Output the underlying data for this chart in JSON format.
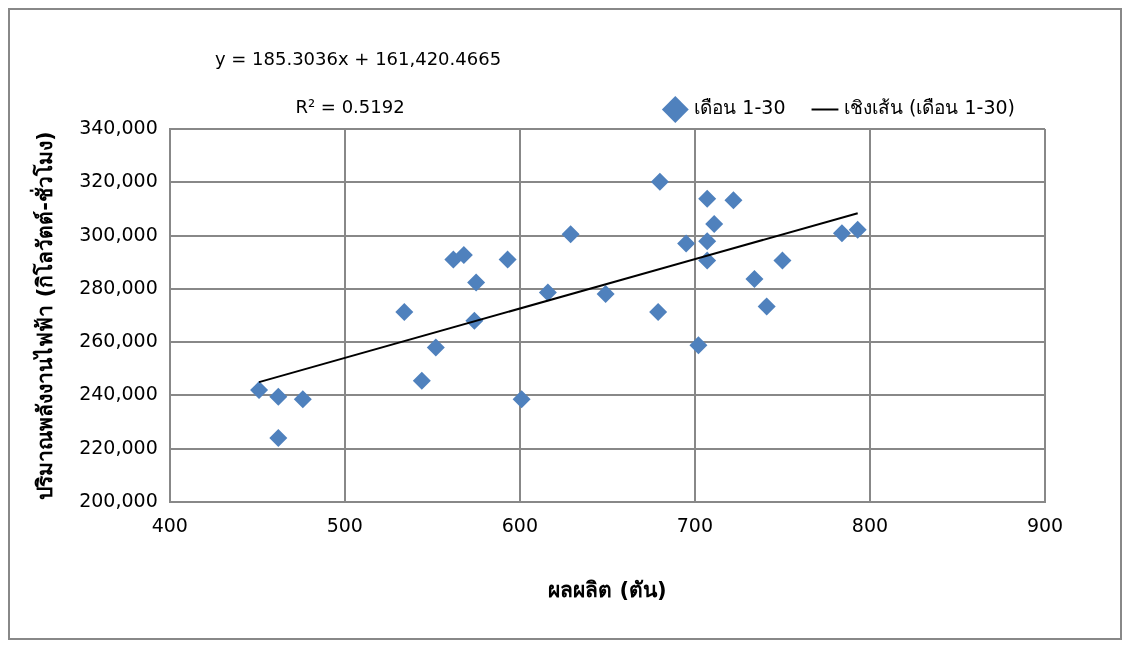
{
  "chart_data": {
    "type": "scatter",
    "xlabel": "ผลผลิต (ตัน)",
    "ylabel": "ปริมาณพลังงานไฟฟ้า (กิโลวัตต์-ชั่วโมง)",
    "annotations": [
      "y = 185.3036x + 161,420.4665",
      "R² = 0.5192"
    ],
    "series": [
      {
        "name": "เดือน 1-30",
        "color": "#4f81bd",
        "type": "scatter",
        "marker": "diamond",
        "x": [
          451,
          462,
          462,
          476,
          534,
          544,
          552,
          562,
          568,
          575,
          574,
          593,
          601,
          616,
          629,
          649,
          680,
          679,
          695,
          702,
          707,
          707,
          707,
          711,
          722,
          734,
          741,
          750,
          784,
          793
        ],
        "values": [
          242000,
          239500,
          224000,
          238600,
          271300,
          245500,
          258000,
          291000,
          292700,
          282400,
          268000,
          291000,
          238600,
          278600,
          300500,
          278100,
          320200,
          271300,
          297000,
          258800,
          313800,
          297900,
          290600,
          304300,
          313300,
          283700,
          273400,
          290600,
          300900,
          302200
        ]
      },
      {
        "name": "เชิงเส้น (เดือน 1-30)",
        "color": "#000000",
        "type": "line",
        "marker": "none",
        "x": [
          451,
          793
        ],
        "values": [
          245000,
          308400
        ]
      }
    ],
    "xlim": [
      400,
      900
    ],
    "xticks": [
      400,
      500,
      600,
      700,
      800,
      900
    ],
    "ylim": [
      200000,
      340000
    ],
    "yticks": [
      {
        "value": 200000,
        "label": "200,000"
      },
      {
        "value": 220000,
        "label": "220,000"
      },
      {
        "value": 240000,
        "label": "240,000"
      },
      {
        "value": 260000,
        "label": "260,000"
      },
      {
        "value": 280000,
        "label": "280,000"
      },
      {
        "value": 300000,
        "label": "300,000"
      },
      {
        "value": 320000,
        "label": "320,000"
      },
      {
        "value": 340000,
        "label": "340,000"
      }
    ],
    "grid": true,
    "legend": "top right"
  }
}
